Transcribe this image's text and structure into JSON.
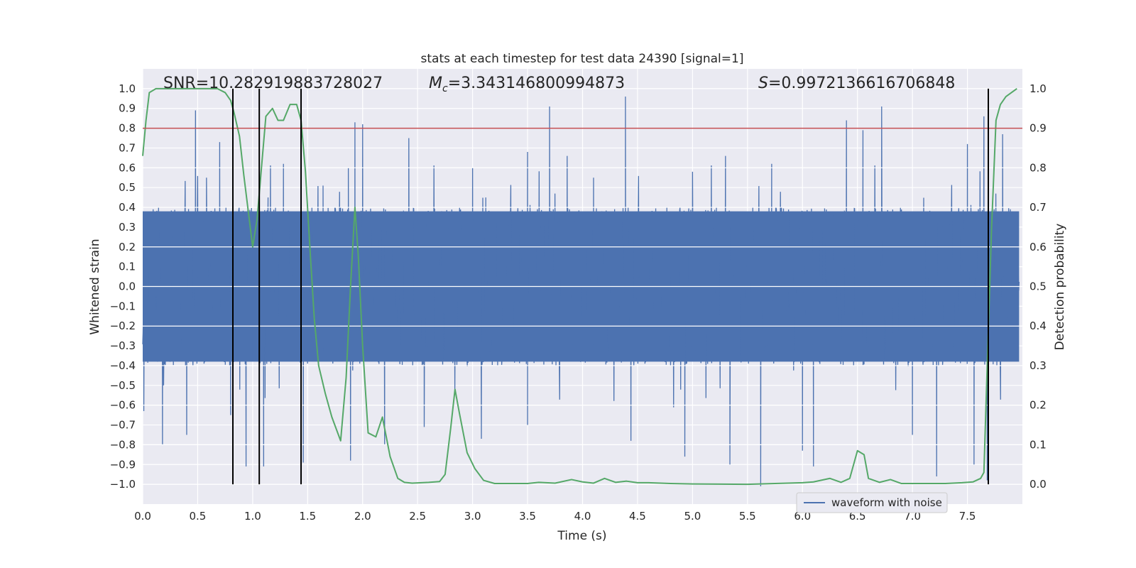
{
  "chart_data": {
    "type": "line",
    "title": "stats at each timestep for test data 24390 [signal=1]",
    "xlabel": "Time (s)",
    "ylabel": "Whitened strain",
    "y2label": "Detection probability",
    "xlim": [
      0.0,
      8.0
    ],
    "ylim": [
      -1.1,
      1.1
    ],
    "y2lim": [
      -0.05,
      1.05
    ],
    "xticks": [
      "0.0",
      "0.5",
      "1.0",
      "1.5",
      "2.0",
      "2.5",
      "3.0",
      "3.5",
      "4.0",
      "4.5",
      "5.0",
      "5.5",
      "6.0",
      "6.5",
      "7.0",
      "7.5"
    ],
    "yticks": [
      "−1.0",
      "−0.9",
      "−0.8",
      "−0.7",
      "−0.6",
      "−0.5",
      "−0.4",
      "−0.3",
      "−0.2",
      "−0.1",
      "0.0",
      "0.1",
      "0.2",
      "0.3",
      "0.4",
      "0.5",
      "0.6",
      "0.7",
      "0.8",
      "0.9",
      "1.0"
    ],
    "y2ticks": [
      "0.0",
      "0.1",
      "0.2",
      "0.3",
      "0.4",
      "0.5",
      "0.6",
      "0.7",
      "0.8",
      "0.9",
      "1.0"
    ],
    "grid": true,
    "legend": {
      "placement": "bottom-right",
      "entries": [
        "waveform with noise"
      ]
    },
    "annotations": {
      "snr": "SNR=10.282919883728027",
      "mc_symbol": "M",
      "mc_sub": "c",
      "mc_value": "=3.343146800994873",
      "s_symbol": "S",
      "s_value": "=0.9972136616706848"
    },
    "series": [
      {
        "name": "waveform with noise",
        "color": "#4c72b0",
        "duration_s": 7.97,
        "core_amplitude": 0.38,
        "spikes_up": [
          [
            0.48,
            0.89
          ],
          [
            0.58,
            0.55
          ],
          [
            0.7,
            0.73
          ],
          [
            1.14,
            0.45
          ],
          [
            1.28,
            0.62
          ],
          [
            1.64,
            0.51
          ],
          [
            1.87,
            0.6
          ],
          [
            1.93,
            0.83
          ],
          [
            2.0,
            0.82
          ],
          [
            2.42,
            0.75
          ],
          [
            3.0,
            0.6
          ],
          [
            3.12,
            0.45
          ],
          [
            3.5,
            0.68
          ],
          [
            3.7,
            0.91
          ],
          [
            3.86,
            0.66
          ],
          [
            4.1,
            0.55
          ],
          [
            4.39,
            0.96
          ],
          [
            5.0,
            0.58
          ],
          [
            5.3,
            0.66
          ],
          [
            5.72,
            0.62
          ],
          [
            6.4,
            0.84
          ],
          [
            6.55,
            0.79
          ],
          [
            6.72,
            0.91
          ],
          [
            7.5,
            0.72
          ],
          [
            7.65,
            0.86
          ],
          [
            7.82,
            0.77
          ]
        ],
        "spikes_down": [
          [
            0.01,
            -0.63
          ],
          [
            0.18,
            -0.8
          ],
          [
            0.4,
            -0.75
          ],
          [
            0.8,
            -0.65
          ],
          [
            0.94,
            -0.91
          ],
          [
            1.1,
            -0.91
          ],
          [
            1.46,
            -0.89
          ],
          [
            1.89,
            -0.88
          ],
          [
            2.2,
            -0.8
          ],
          [
            2.56,
            -0.71
          ],
          [
            3.08,
            -0.77
          ],
          [
            3.5,
            -0.7
          ],
          [
            4.44,
            -0.78
          ],
          [
            4.93,
            -0.86
          ],
          [
            5.34,
            -0.9
          ],
          [
            5.62,
            -1.01
          ],
          [
            6.0,
            -0.83
          ],
          [
            6.1,
            -0.91
          ],
          [
            7.0,
            -0.75
          ],
          [
            7.22,
            -0.96
          ],
          [
            7.56,
            -0.9
          ],
          [
            7.68,
            -0.98
          ]
        ],
        "sampled_trace": "dense noise sampled from a seeded generator; amplitudes above are read from the figure"
      },
      {
        "name": "detection probability",
        "color": "#55a868",
        "axis": "right",
        "points": [
          [
            0.0,
            0.83
          ],
          [
            0.03,
            0.92
          ],
          [
            0.06,
            0.99
          ],
          [
            0.12,
            1.0
          ],
          [
            0.2,
            1.0
          ],
          [
            0.3,
            1.0
          ],
          [
            0.4,
            1.0
          ],
          [
            0.5,
            1.0
          ],
          [
            0.6,
            1.0
          ],
          [
            0.68,
            1.0
          ],
          [
            0.75,
            0.99
          ],
          [
            0.8,
            0.97
          ],
          [
            0.83,
            0.94
          ],
          [
            0.88,
            0.88
          ],
          [
            0.92,
            0.78
          ],
          [
            0.96,
            0.69
          ],
          [
            1.0,
            0.6
          ],
          [
            1.04,
            0.67
          ],
          [
            1.08,
            0.8
          ],
          [
            1.12,
            0.93
          ],
          [
            1.18,
            0.95
          ],
          [
            1.23,
            0.92
          ],
          [
            1.28,
            0.92
          ],
          [
            1.34,
            0.96
          ],
          [
            1.4,
            0.96
          ],
          [
            1.44,
            0.92
          ],
          [
            1.48,
            0.79
          ],
          [
            1.52,
            0.6
          ],
          [
            1.56,
            0.42
          ],
          [
            1.6,
            0.3
          ],
          [
            1.66,
            0.23
          ],
          [
            1.72,
            0.17
          ],
          [
            1.8,
            0.11
          ],
          [
            1.85,
            0.27
          ],
          [
            1.89,
            0.5
          ],
          [
            1.93,
            0.7
          ],
          [
            1.96,
            0.58
          ],
          [
            2.0,
            0.35
          ],
          [
            2.05,
            0.13
          ],
          [
            2.12,
            0.12
          ],
          [
            2.18,
            0.17
          ],
          [
            2.25,
            0.07
          ],
          [
            2.32,
            0.015
          ],
          [
            2.38,
            0.005
          ],
          [
            2.45,
            0.003
          ],
          [
            2.6,
            0.005
          ],
          [
            2.7,
            0.007
          ],
          [
            2.75,
            0.025
          ],
          [
            2.8,
            0.14
          ],
          [
            2.84,
            0.24
          ],
          [
            2.88,
            0.18
          ],
          [
            2.95,
            0.08
          ],
          [
            3.02,
            0.04
          ],
          [
            3.1,
            0.01
          ],
          [
            3.2,
            0.002
          ],
          [
            3.5,
            0.002
          ],
          [
            3.6,
            0.005
          ],
          [
            3.75,
            0.003
          ],
          [
            3.9,
            0.012
          ],
          [
            4.0,
            0.006
          ],
          [
            4.1,
            0.003
          ],
          [
            4.2,
            0.015
          ],
          [
            4.3,
            0.005
          ],
          [
            4.4,
            0.008
          ],
          [
            4.5,
            0.004
          ],
          [
            4.6,
            0.004
          ],
          [
            4.8,
            0.002
          ],
          [
            5.0,
            0.001
          ],
          [
            5.5,
            0.0
          ],
          [
            6.0,
            0.004
          ],
          [
            6.1,
            0.006
          ],
          [
            6.25,
            0.015
          ],
          [
            6.35,
            0.005
          ],
          [
            6.43,
            0.015
          ],
          [
            6.5,
            0.085
          ],
          [
            6.56,
            0.075
          ],
          [
            6.6,
            0.015
          ],
          [
            6.7,
            0.005
          ],
          [
            6.8,
            0.012
          ],
          [
            6.9,
            0.002
          ],
          [
            7.0,
            0.002
          ],
          [
            7.3,
            0.002
          ],
          [
            7.45,
            0.004
          ],
          [
            7.55,
            0.006
          ],
          [
            7.62,
            0.015
          ],
          [
            7.65,
            0.03
          ],
          [
            7.68,
            0.3
          ],
          [
            7.72,
            0.65
          ],
          [
            7.76,
            0.92
          ],
          [
            7.8,
            0.96
          ],
          [
            7.85,
            0.98
          ],
          [
            7.9,
            0.99
          ],
          [
            7.95,
            1.0
          ]
        ]
      }
    ],
    "threshold": {
      "axis": "right",
      "value": 0.9,
      "color": "#c44e52"
    },
    "event_lines": [
      0.82,
      1.06,
      1.44,
      7.69
    ],
    "event_line_color": "#000000",
    "event_line_range": [
      -1.0,
      1.0
    ]
  }
}
